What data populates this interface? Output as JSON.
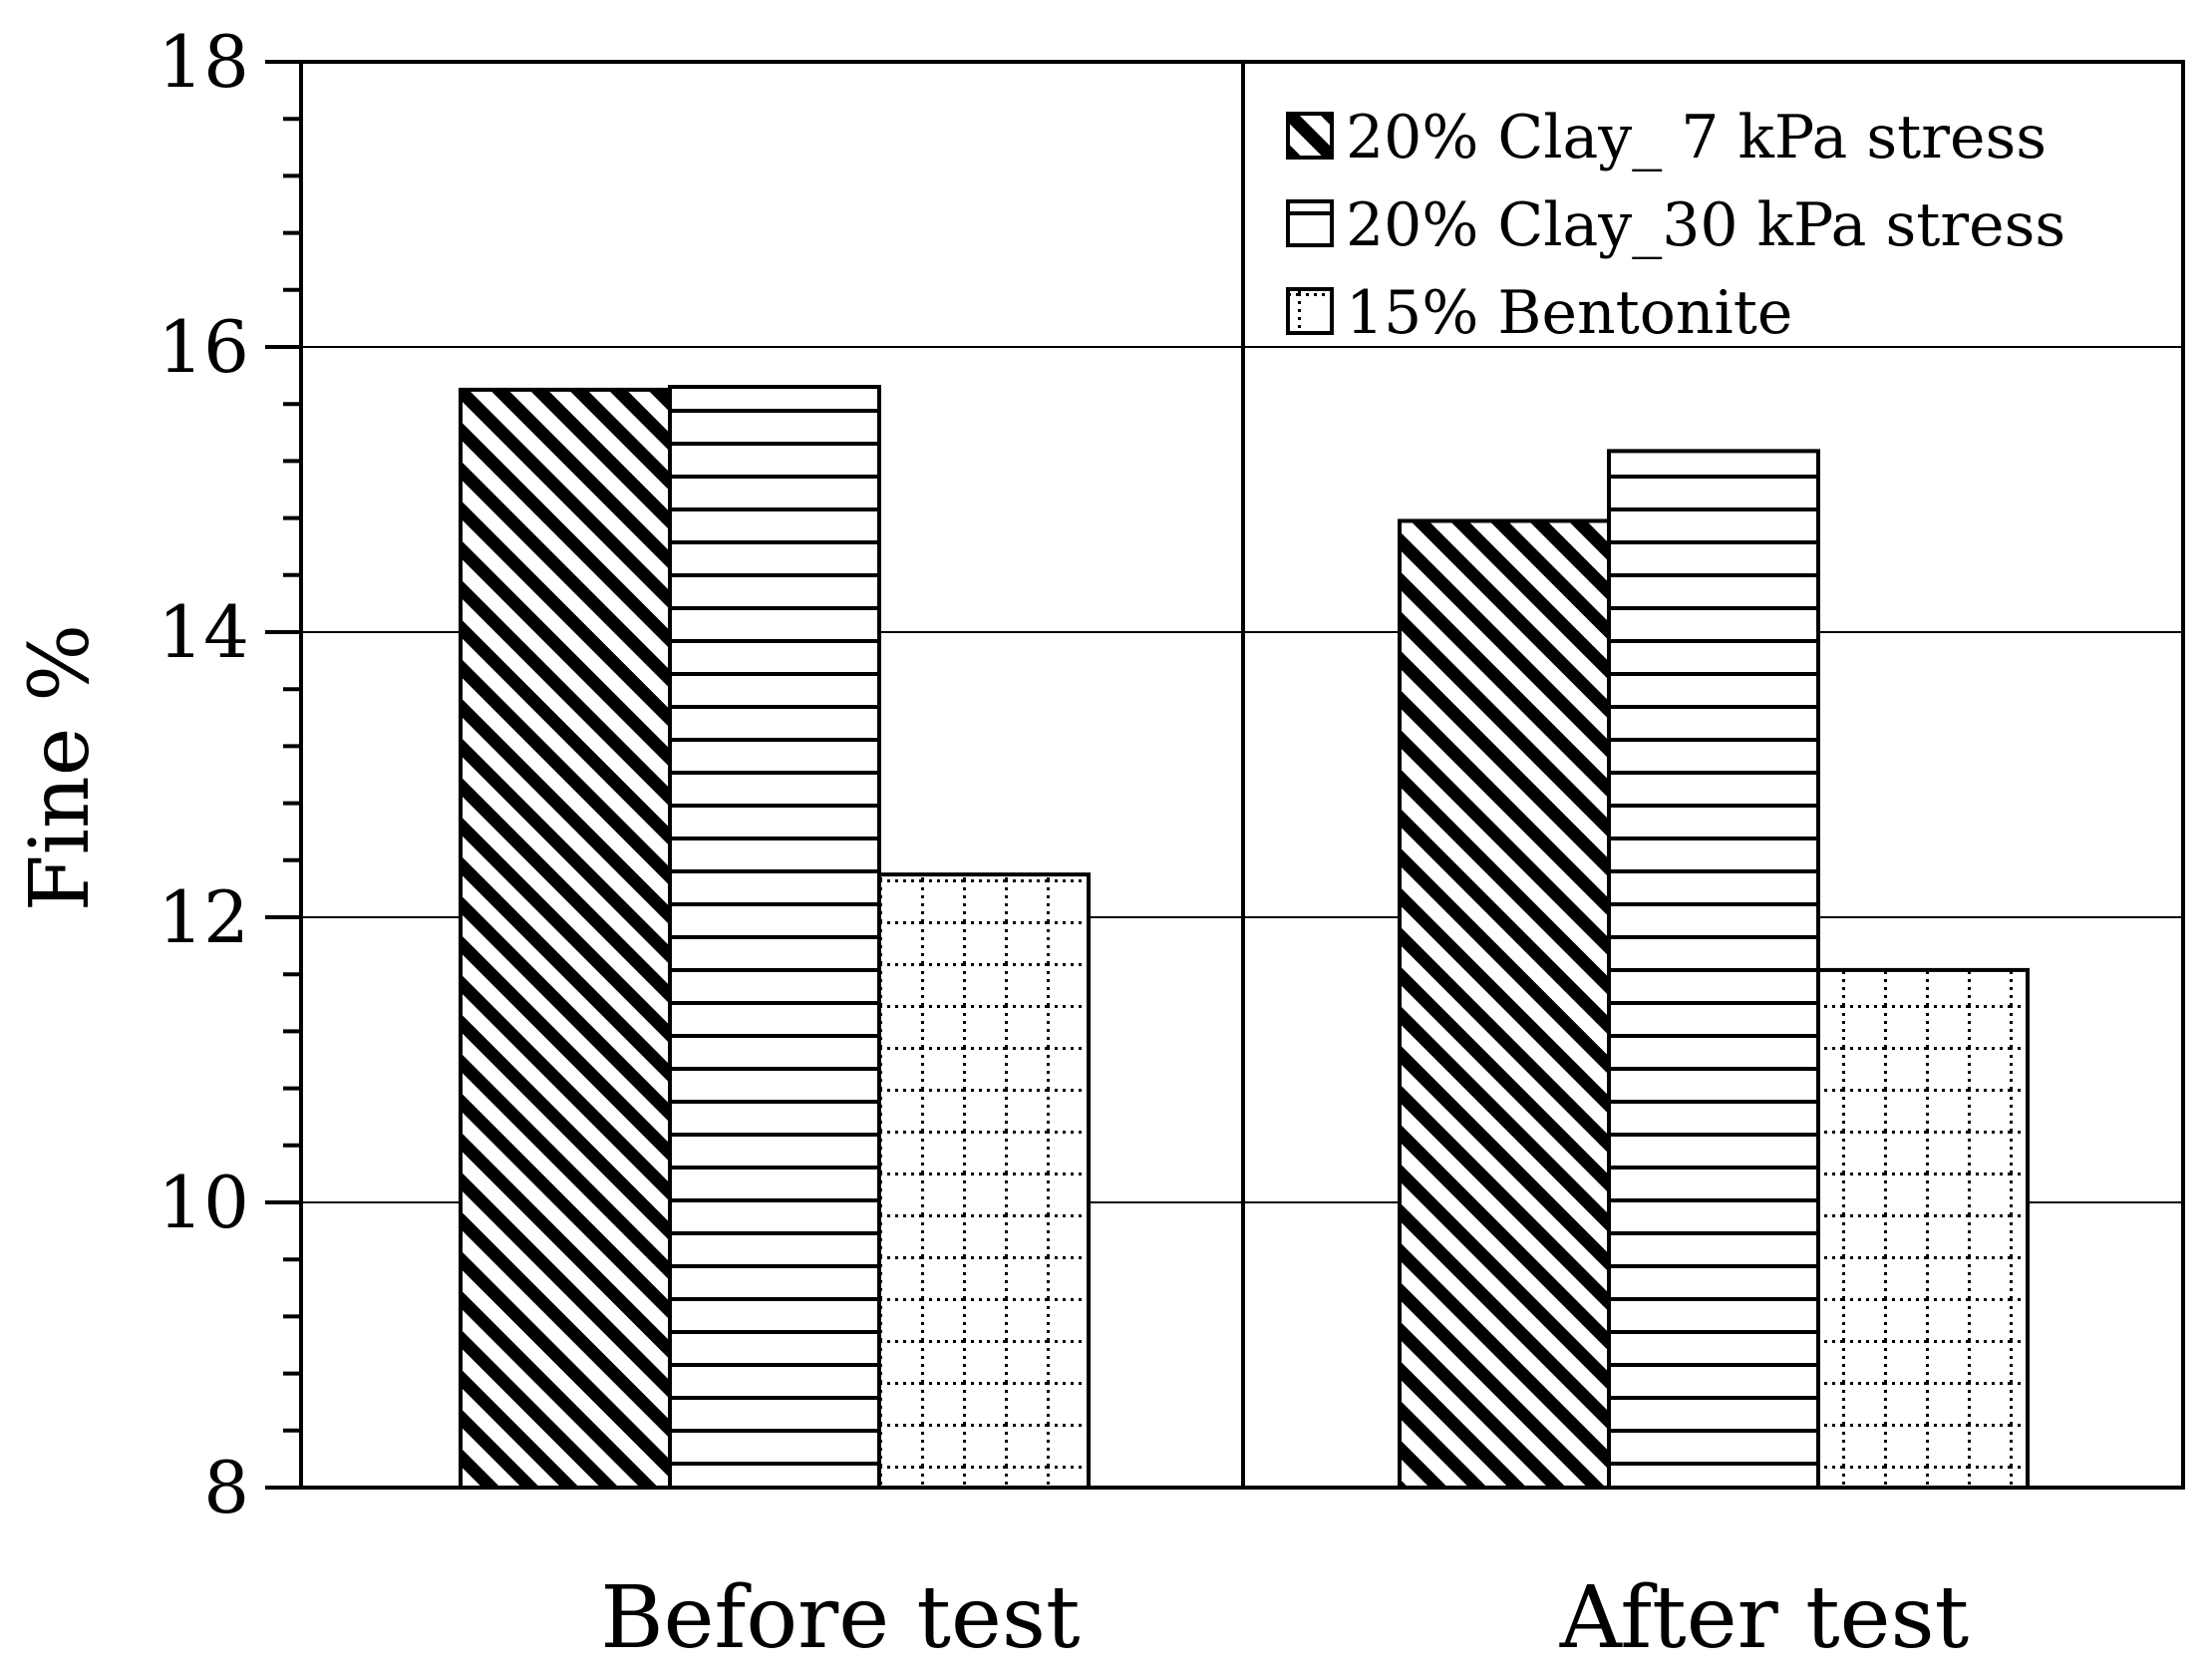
{
  "chart_data": {
    "type": "bar",
    "title": "",
    "xlabel": "",
    "ylabel": "Fine %",
    "ylim": [
      8,
      18
    ],
    "yticks": [
      "8",
      "10",
      "12",
      "14",
      "16",
      "18"
    ],
    "grid": "horizontal major",
    "legend_position": "top-right",
    "categories": [
      "Before test",
      "After test"
    ],
    "series": [
      {
        "name": "20% Clay_ 7 kPa stress",
        "pattern": "diagonal",
        "values": [
          15.7,
          14.78
        ]
      },
      {
        "name": "20% Clay_30 kPa stress",
        "pattern": "horizontal",
        "values": [
          15.72,
          15.27
        ]
      },
      {
        "name": "15% Bentonite",
        "pattern": "dotted-grid",
        "values": [
          12.3,
          11.63
        ]
      }
    ],
    "colors": {
      "fill": "#ffffff",
      "stroke": "#000000"
    }
  }
}
